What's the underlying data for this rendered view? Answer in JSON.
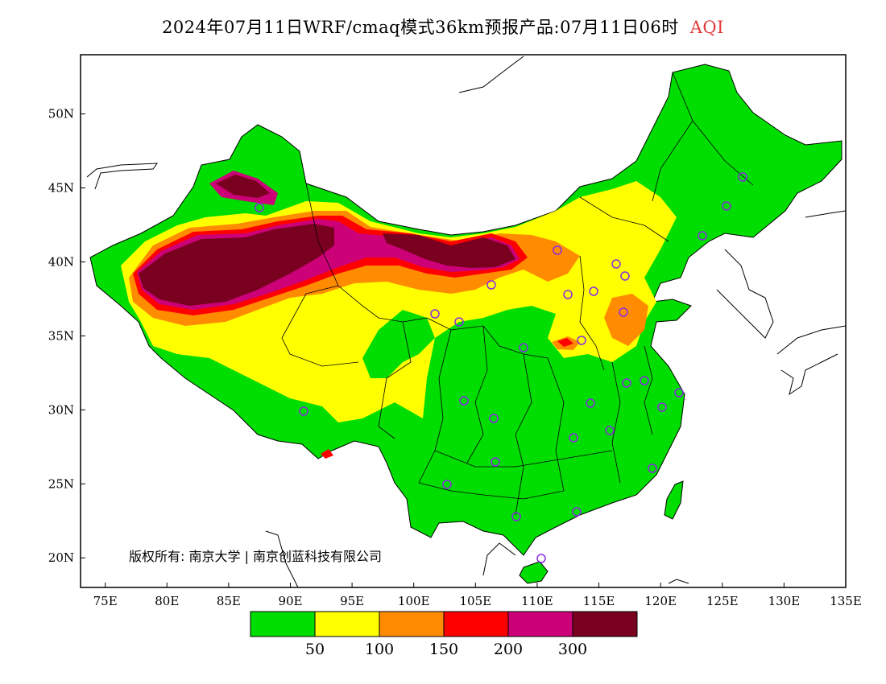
{
  "title": {
    "main": "2024年07月11日WRF/cmaq模式36km预报产品:07月11日06时",
    "pollutant": "AQI"
  },
  "map": {
    "lon_range": [
      73,
      135
    ],
    "lat_range": [
      18,
      54
    ],
    "x_ticks": [
      "75E",
      "80E",
      "85E",
      "90E",
      "95E",
      "100E",
      "105E",
      "110E",
      "115E",
      "120E",
      "125E",
      "130E",
      "135E"
    ],
    "y_ticks": [
      "20N",
      "25N",
      "30N",
      "35N",
      "40N",
      "45N",
      "50N"
    ],
    "copyright": "版权所有: 南京大学 | 南京创蓝科技有限公司",
    "station_count": 31
  },
  "legend": {
    "colors": [
      "#00dd00",
      "#ffff00",
      "#ff8c00",
      "#ff0000",
      "#cc0077",
      "#7a0020"
    ],
    "labels": [
      "50",
      "100",
      "150",
      "200",
      "300"
    ]
  },
  "colors": {
    "land": "#00dd00",
    "ocean": "#ffffff",
    "station": "#8a2be2"
  }
}
